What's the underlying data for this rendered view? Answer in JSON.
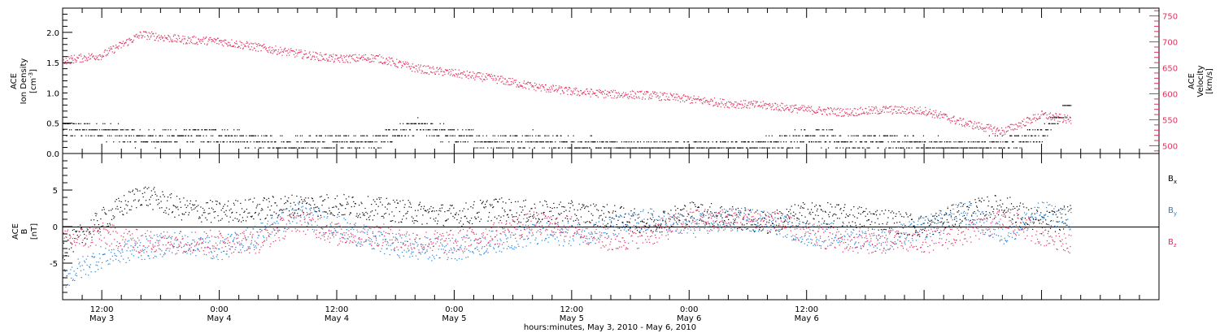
{
  "chart_data": [
    {
      "type": "scatter",
      "panel": "top",
      "ylabel_left": [
        "ACE",
        "Ion Density",
        "[cm",
        "-3",
        "]"
      ],
      "ylabel_right": [
        "ACE",
        "Velocity",
        "[km/s]"
      ],
      "ylim_left": [
        0.0,
        2.4
      ],
      "yticks_left": [
        "0.0",
        "0.5",
        "1.0",
        "1.5",
        "2.0"
      ],
      "ylim_right": [
        485,
        765
      ],
      "yticks_right": [
        "500",
        "550",
        "600",
        "650",
        "700",
        "750"
      ],
      "x_range_hours": [
        -16,
        96
      ],
      "series": [
        {
          "axis": "left",
          "color": "#000000",
          "trend": {
            "x": [
              -16,
              -12,
              -8,
              -4,
              0,
              4,
              8,
              12,
              16,
              20,
              24,
              28,
              32,
              36,
              40,
              44,
              48,
              52,
              56,
              60,
              64,
              68,
              72,
              76,
              80,
              84,
              87
            ],
            "y": [
              0.42,
              0.38,
              0.25,
              0.3,
              0.3,
              0.2,
              0.15,
              0.2,
              0.2,
              0.45,
              0.3,
              0.2,
              0.25,
              0.15,
              0.12,
              0.1,
              0.1,
              0.12,
              0.15,
              0.3,
              0.2,
              0.2,
              0.15,
              0.12,
              0.15,
              0.35,
              0.8
            ]
          }
        },
        {
          "axis": "right",
          "color": "#e0305e",
          "trend": {
            "x": [
              -16,
              -12,
              -8,
              -4,
              0,
              4,
              8,
              12,
              16,
              20,
              24,
              28,
              32,
              36,
              40,
              44,
              48,
              52,
              56,
              60,
              64,
              68,
              72,
              76,
              80,
              84,
              87
            ],
            "y": [
              665,
              675,
              715,
              705,
              702,
              690,
              678,
              668,
              670,
              650,
              640,
              630,
              615,
              605,
              600,
              598,
              590,
              582,
              578,
              570,
              565,
              570,
              568,
              545,
              528,
              560,
              550
            ]
          }
        }
      ]
    },
    {
      "type": "scatter",
      "panel": "bottom",
      "ylabel": [
        "ACE",
        "B",
        "[nT]"
      ],
      "ylim": [
        -10,
        10
      ],
      "yticks": [
        "-5",
        "0",
        "5"
      ],
      "x_range_hours": [
        -16,
        96
      ],
      "series": [
        {
          "name": "B",
          "subscript": "x",
          "color": "#000000",
          "trend": {
            "x": [
              -16,
              -12,
              -8,
              -4,
              0,
              4,
              8,
              12,
              16,
              20,
              24,
              28,
              32,
              36,
              40,
              44,
              48,
              52,
              56,
              60,
              64,
              68,
              72,
              76,
              80,
              84,
              87
            ],
            "y": [
              -3,
              1,
              4.5,
              2.5,
              2,
              2.5,
              3,
              3,
              2.5,
              2,
              1.5,
              2.5,
              2,
              2,
              1.5,
              0.5,
              2,
              1.5,
              0.5,
              2,
              1.5,
              1,
              0,
              2,
              3,
              0.5,
              1.5
            ]
          }
        },
        {
          "name": "B",
          "subscript": "y",
          "color": "#1e7fd8",
          "trend": {
            "x": [
              -16,
              -12,
              -8,
              -4,
              0,
              4,
              8,
              12,
              16,
              20,
              24,
              28,
              32,
              36,
              40,
              44,
              48,
              52,
              56,
              60,
              64,
              68,
              72,
              76,
              80,
              84,
              87
            ],
            "y": [
              -7,
              -4,
              -3,
              -2,
              -3,
              -1,
              2,
              0,
              -2,
              -3,
              -3,
              -2,
              -1,
              -1,
              0,
              1,
              0,
              1,
              1,
              -1,
              -1,
              -2,
              0,
              2,
              -1,
              2,
              1
            ]
          }
        },
        {
          "name": "B",
          "subscript": "z",
          "color": "#e0305e",
          "trend": {
            "x": [
              -16,
              -12,
              -8,
              -4,
              0,
              4,
              8,
              12,
              16,
              20,
              24,
              28,
              32,
              36,
              40,
              44,
              48,
              52,
              56,
              60,
              64,
              68,
              72,
              76,
              80,
              84,
              87
            ],
            "y": [
              -2,
              -1,
              -2,
              -2,
              -2,
              -2,
              1,
              -1,
              -1,
              -2,
              -2,
              -1,
              0.5,
              0,
              -2,
              -1,
              1,
              1,
              1,
              -1,
              -2,
              -2,
              -2,
              -1,
              1,
              -1,
              -2
            ]
          }
        }
      ]
    }
  ],
  "x_axis": {
    "hour_ticks": [
      -12,
      0,
      12,
      24,
      36,
      48,
      60,
      72,
      84,
      96
    ],
    "labels": [
      {
        "time": "12:00",
        "date": "May 3"
      },
      {
        "time": "0:00",
        "date": "May 4"
      },
      {
        "time": "12:00",
        "date": "May 4"
      },
      {
        "time": "0:00",
        "date": "May 5"
      },
      {
        "time": "12:00",
        "date": "May 5"
      },
      {
        "time": "0:00",
        "date": "May 6"
      },
      {
        "time": "12:00",
        "date": "May 6"
      }
    ],
    "title": "hours:minutes, May  3, 2010 - May  6, 2010"
  },
  "colors": {
    "black": "#000000",
    "blue": "#1e7fd8",
    "pink": "#e0305e"
  }
}
